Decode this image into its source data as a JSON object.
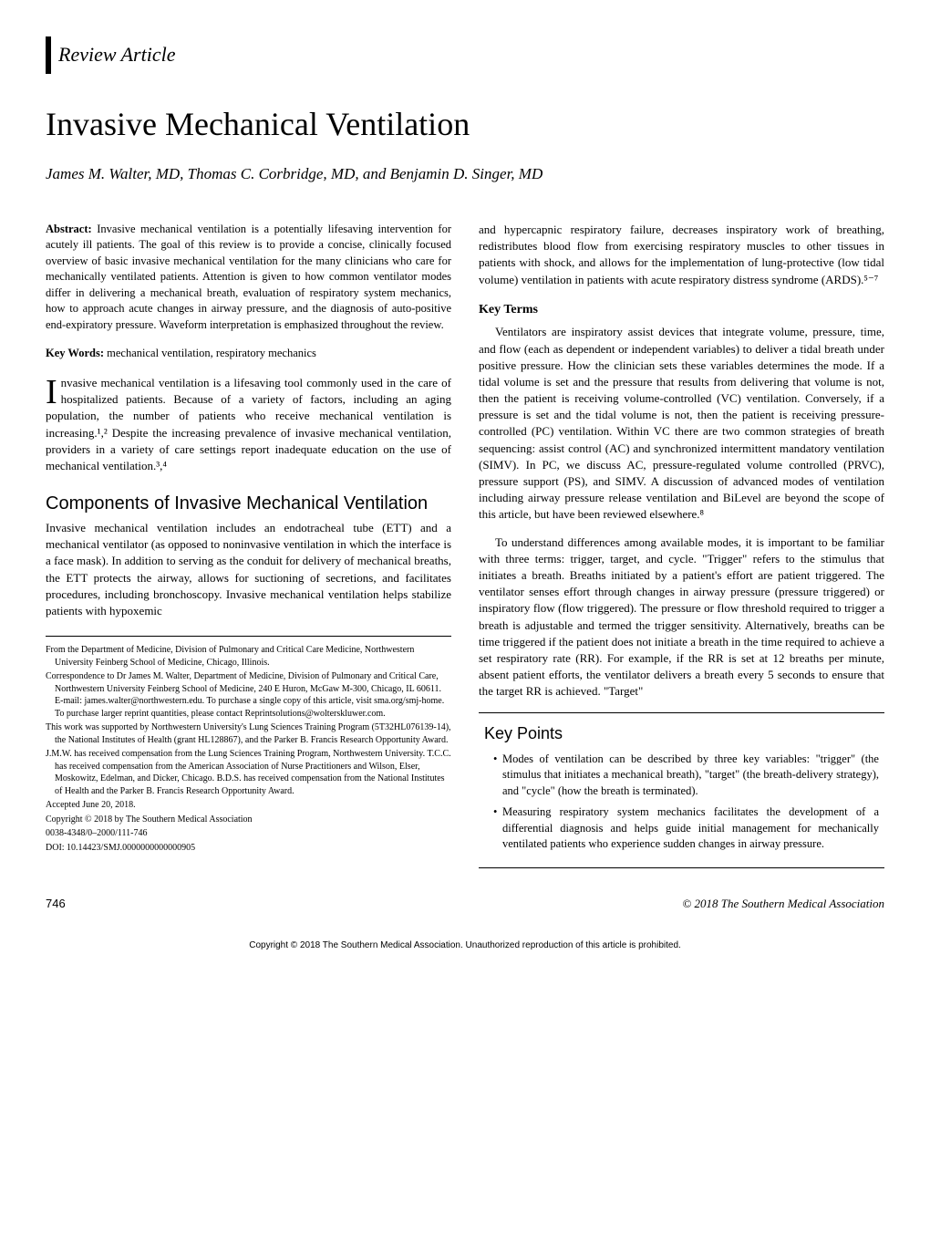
{
  "article_type": "Review Article",
  "title": "Invasive Mechanical Ventilation",
  "authors": "James M. Walter, MD, Thomas C. Corbridge, MD, and Benjamin D. Singer, MD",
  "abstract": {
    "label": "Abstract:",
    "text": " Invasive mechanical ventilation is a potentially lifesaving intervention for acutely ill patients. The goal of this review is to provide a concise, clinically focused overview of basic invasive mechanical ventilation for the many clinicians who care for mechanically ventilated patients. Attention is given to how common ventilator modes differ in delivering a mechanical breath, evaluation of respiratory system mechanics, how to approach acute changes in airway pressure, and the diagnosis of auto-positive end-expiratory pressure. Waveform interpretation is emphasized throughout the review."
  },
  "keywords": {
    "label": "Key Words:",
    "text": " mechanical ventilation, respiratory mechanics"
  },
  "intro_dropcap": "I",
  "intro_text": "nvasive mechanical ventilation is a lifesaving tool commonly used in the care of hospitalized patients. Because of a variety of factors, including an aging population, the number of patients who receive mechanical ventilation is increasing.¹,² Despite the increasing prevalence of invasive mechanical ventilation, providers in a variety of care settings report inadequate education on the use of mechanical ventilation.³,⁴",
  "section_components": {
    "heading": "Components of Invasive Mechanical Ventilation",
    "para": "Invasive mechanical ventilation includes an endotracheal tube (ETT) and a mechanical ventilator (as opposed to noninvasive ventilation in which the interface is a face mask). In addition to serving as the conduit for delivery of mechanical breaths, the ETT protects the airway, allows for suctioning of secretions, and facilitates procedures, including bronchoscopy. Invasive mechanical ventilation helps stabilize patients with hypoxemic"
  },
  "footnotes": {
    "from": "From the Department of Medicine, Division of Pulmonary and Critical Care Medicine, Northwestern University Feinberg School of Medicine, Chicago, Illinois.",
    "correspondence": "Correspondence to Dr James M. Walter, Department of Medicine, Division of Pulmonary and Critical Care, Northwestern University Feinberg School of Medicine, 240 E Huron, McGaw M-300, Chicago, IL 60611. E-mail: james.walter@northwestern.edu. To purchase a single copy of this article, visit sma.org/smj-home. To purchase larger reprint quantities, please contact Reprintsolutions@wolterskluwer.com.",
    "funding": "This work was supported by Northwestern University's Lung Sciences Training Program (5T32HL076139-14), the National Institutes of Health (grant HL128867), and the Parker B. Francis Research Opportunity Award.",
    "disclosure": "J.M.W. has received compensation from the Lung Sciences Training Program, Northwestern University. T.C.C. has received compensation from the American Association of Nurse Practitioners and Wilson, Elser, Moskowitz, Edelman, and Dicker, Chicago. B.D.S. has received compensation from the National Institutes of Health and the Parker B. Francis Research Opportunity Award.",
    "accepted": "Accepted June 20, 2018.",
    "copyright": "Copyright © 2018 by The Southern Medical Association",
    "issn": "0038-4348/0–2000/111-746",
    "doi": "DOI: 10.14423/SMJ.0000000000000905"
  },
  "right_col": {
    "para1": "and hypercapnic respiratory failure, decreases inspiratory work of breathing, redistributes blood flow from exercising respiratory muscles to other tissues in patients with shock, and allows for the implementation of lung-protective (low tidal volume) ventilation in patients with acute respiratory distress syndrome (ARDS).⁵⁻⁷",
    "keyterms_heading": "Key Terms",
    "para2": "Ventilators are inspiratory assist devices that integrate volume, pressure, time, and flow (each as dependent or independent variables) to deliver a tidal breath under positive pressure. How the clinician sets these variables determines the mode. If a tidal volume is set and the pressure that results from delivering that volume is not, then the patient is receiving volume-controlled (VC) ventilation. Conversely, if a pressure is set and the tidal volume is not, then the patient is receiving pressure-controlled (PC) ventilation. Within VC there are two common strategies of breath sequencing: assist control (AC) and synchronized intermittent mandatory ventilation (SIMV). In PC, we discuss AC, pressure-regulated volume controlled (PRVC), pressure support (PS), and SIMV. A discussion of advanced modes of ventilation including airway pressure release ventilation and BiLevel are beyond the scope of this article, but have been reviewed elsewhere.⁸",
    "para3": "To understand differences among available modes, it is important to be familiar with three terms: trigger, target, and cycle. \"Trigger\" refers to the stimulus that initiates a breath. Breaths initiated by a patient's effort are patient triggered. The ventilator senses effort through changes in airway pressure (pressure triggered) or inspiratory flow (flow triggered). The pressure or flow threshold required to trigger a breath is adjustable and termed the trigger sensitivity. Alternatively, breaths can be time triggered if the patient does not initiate a breath in the time required to achieve a set respiratory rate (RR). For example, if the RR is set at 12 breaths per minute, absent patient efforts, the ventilator delivers a breath every 5 seconds to ensure that the target RR is achieved. \"Target\""
  },
  "keypoints": {
    "title": "Key Points",
    "items": [
      "Modes of ventilation can be described by three key variables: \"trigger\" (the stimulus that initiates a mechanical breath), \"target\" (the breath-delivery strategy), and \"cycle\" (how the breath is terminated).",
      "Measuring respiratory system mechanics facilitates the development of a differential diagnosis and helps guide initial management for mechanically ventilated patients who experience sudden changes in airway pressure."
    ]
  },
  "footer": {
    "page": "746",
    "right": "© 2018 The Southern Medical Association"
  },
  "bottom_copyright": "Copyright © 2018 The Southern Medical Association. Unauthorized reproduction of this article is prohibited."
}
